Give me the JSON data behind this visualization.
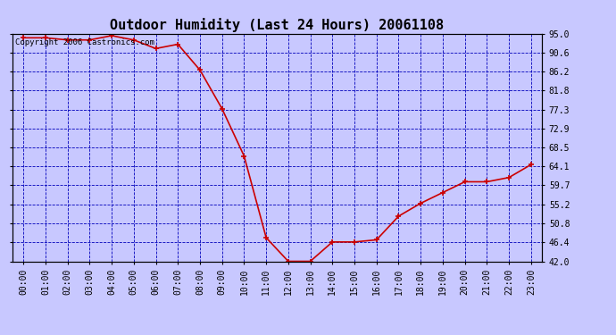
{
  "title": "Outdoor Humidity (Last 24 Hours) 20061108",
  "copyright_text": "Copyright 2006 Castronics.com",
  "background_color": "#c8c8ff",
  "plot_bg_color": "#c8c8ff",
  "line_color": "#cc0000",
  "marker_color": "#cc0000",
  "grid_color": "#0000bb",
  "text_color": "#000000",
  "hours": [
    0,
    1,
    2,
    3,
    4,
    5,
    6,
    7,
    8,
    9,
    10,
    11,
    12,
    13,
    14,
    15,
    16,
    17,
    18,
    19,
    20,
    21,
    22,
    23
  ],
  "humidity": [
    94.0,
    94.0,
    93.5,
    93.5,
    94.5,
    93.5,
    91.5,
    92.5,
    86.5,
    77.5,
    66.5,
    47.5,
    42.0,
    42.0,
    46.5,
    46.5,
    47.0,
    52.5,
    55.5,
    58.0,
    60.5,
    60.5,
    61.5,
    64.5
  ],
  "ylim": [
    42.0,
    95.0
  ],
  "yticks": [
    95.0,
    90.6,
    86.2,
    81.8,
    77.3,
    72.9,
    68.5,
    64.1,
    59.7,
    55.2,
    50.8,
    46.4,
    42.0
  ],
  "title_fontsize": 11,
  "tick_fontsize": 7,
  "copyright_fontsize": 6.5
}
